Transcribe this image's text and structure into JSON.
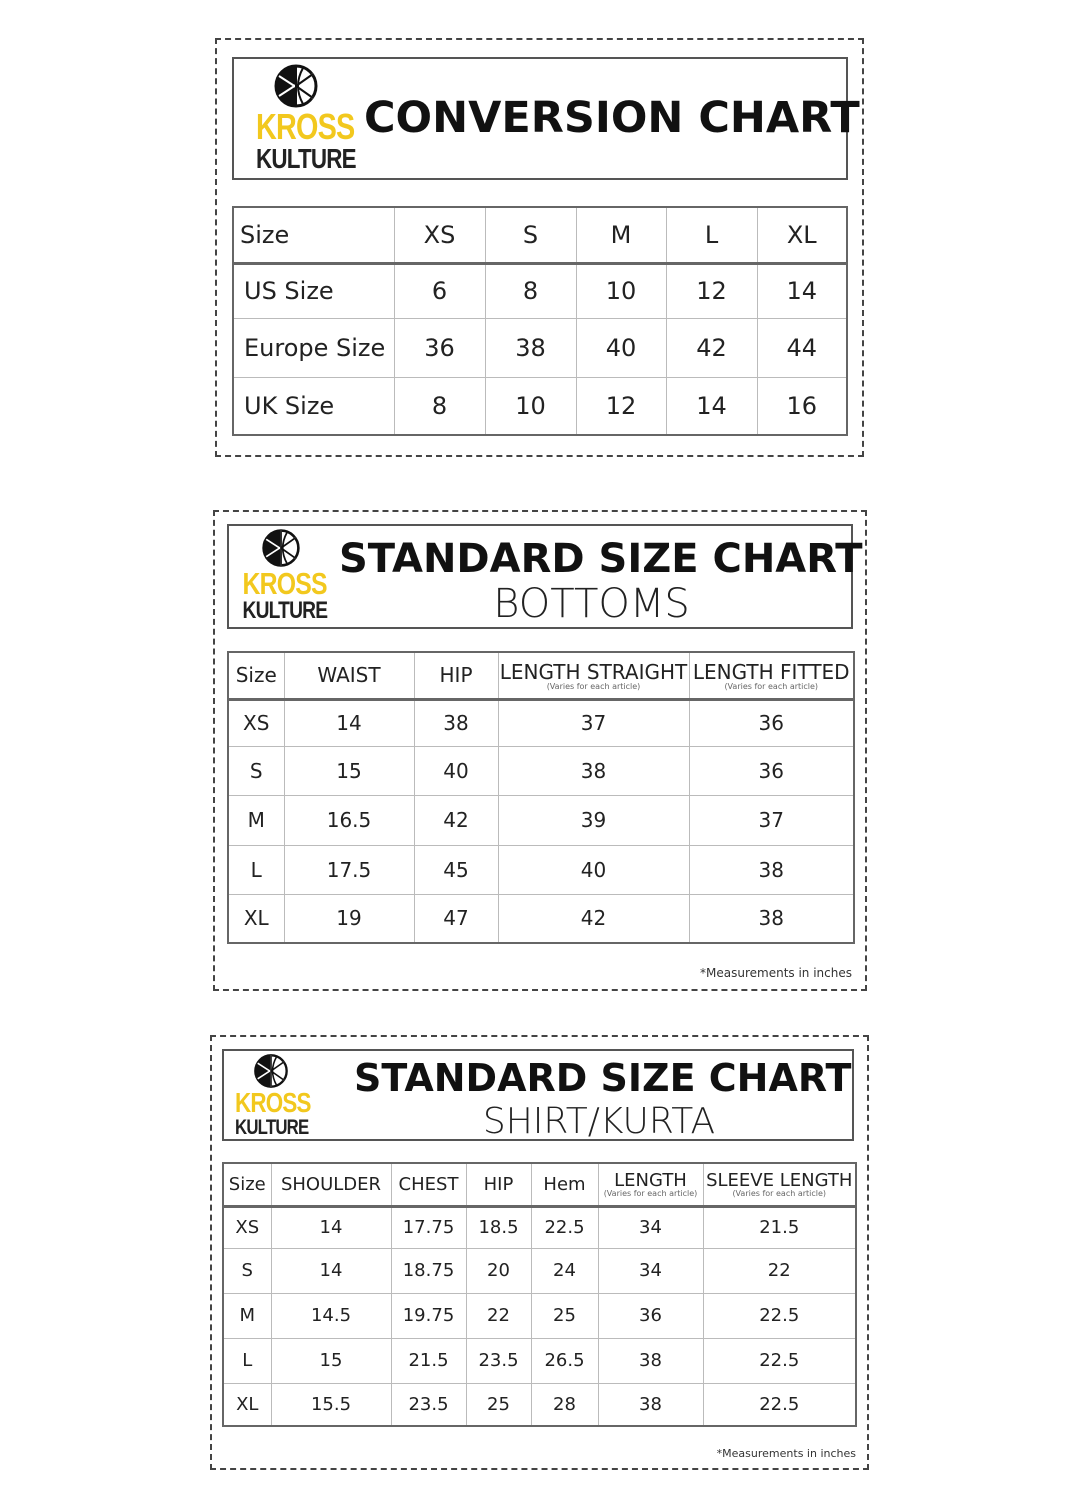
{
  "brand": {
    "line1": "KROSS",
    "line2": "KULTURE",
    "accent": "#f2c81e"
  },
  "conversion": {
    "title": "CONVERSION CHART",
    "headers": [
      "Size",
      "XS",
      "S",
      "M",
      "L",
      "XL"
    ],
    "rows": [
      [
        "US Size",
        "6",
        "8",
        "10",
        "12",
        "14"
      ],
      [
        "Europe Size",
        "36",
        "38",
        "40",
        "42",
        "44"
      ],
      [
        "UK Size",
        "8",
        "10",
        "12",
        "14",
        "16"
      ]
    ]
  },
  "bottoms": {
    "title": "STANDARD SIZE CHART",
    "subtitle": "BOTTOMS",
    "headers": [
      "Size",
      "WAIST",
      "HIP",
      "LENGTH STRAIGHT",
      "LENGTH FITTED"
    ],
    "header_notes": [
      "",
      "",
      "",
      "(Varies for each article)",
      "(Varies for each article)"
    ],
    "rows": [
      [
        "XS",
        "14",
        "38",
        "37",
        "36"
      ],
      [
        "S",
        "15",
        "40",
        "38",
        "36"
      ],
      [
        "M",
        "16.5",
        "42",
        "39",
        "37"
      ],
      [
        "L",
        "17.5",
        "45",
        "40",
        "38"
      ],
      [
        "XL",
        "19",
        "47",
        "42",
        "38"
      ]
    ],
    "footnote": "*Measurements in inches"
  },
  "shirt": {
    "title": "STANDARD SIZE CHART",
    "subtitle": "SHIRT/KURTA",
    "headers": [
      "Size",
      "SHOULDER",
      "CHEST",
      "HIP",
      "Hem",
      "LENGTH",
      "SLEEVE LENGTH"
    ],
    "header_notes": [
      "",
      "",
      "",
      "",
      "",
      "(Varies for each article)",
      "(Varies for each article)"
    ],
    "rows": [
      [
        "XS",
        "14",
        "17.75",
        "18.5",
        "22.5",
        "34",
        "21.5"
      ],
      [
        "S",
        "14",
        "18.75",
        "20",
        "24",
        "34",
        "22"
      ],
      [
        "M",
        "14.5",
        "19.75",
        "22",
        "25",
        "36",
        "22.5"
      ],
      [
        "L",
        "15",
        "21.5",
        "23.5",
        "26.5",
        "38",
        "22.5"
      ],
      [
        "XL",
        "15.5",
        "23.5",
        "25",
        "28",
        "38",
        "22.5"
      ]
    ],
    "footnote": "*Measurements in inches"
  }
}
